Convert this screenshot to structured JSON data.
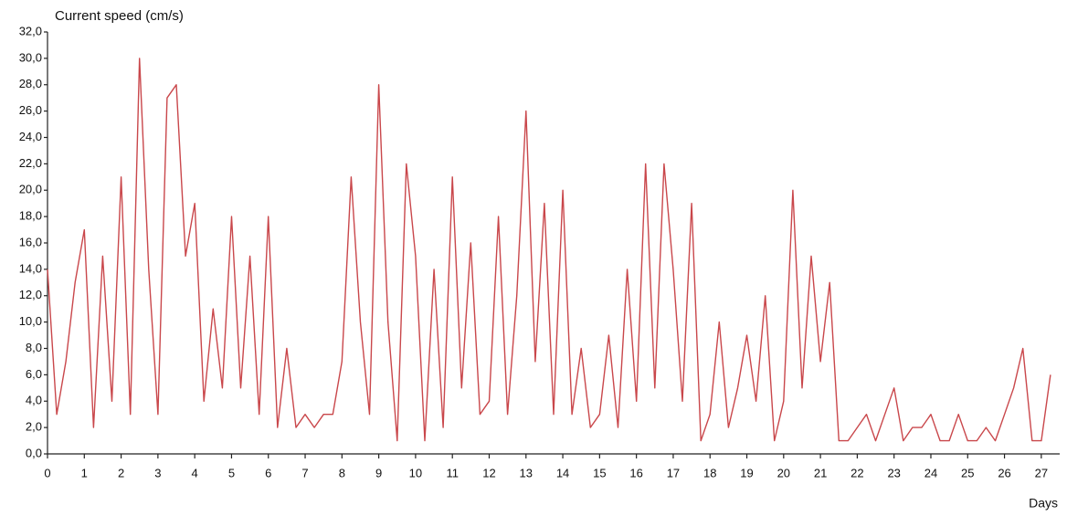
{
  "chart_data": {
    "type": "line",
    "title": "Current speed (cm/s)",
    "x_label": "Days",
    "color": "#c9474b",
    "xlim": [
      0,
      27.5
    ],
    "ylim": [
      0,
      32
    ],
    "xticks": [
      0,
      1,
      2,
      3,
      4,
      5,
      6,
      7,
      8,
      9,
      10,
      11,
      12,
      13,
      14,
      15,
      16,
      17,
      18,
      19,
      20,
      21,
      22,
      23,
      24,
      25,
      26,
      27
    ],
    "yticks": [
      {
        "value": 0,
        "label": "0,0"
      },
      {
        "value": 2,
        "label": "2,0"
      },
      {
        "value": 4,
        "label": "4,0"
      },
      {
        "value": 6,
        "label": "6,0"
      },
      {
        "value": 8,
        "label": "8,0"
      },
      {
        "value": 10,
        "label": "10,0"
      },
      {
        "value": 12,
        "label": "12,0"
      },
      {
        "value": 14,
        "label": "14,0"
      },
      {
        "value": 16,
        "label": "16,0"
      },
      {
        "value": 18,
        "label": "18,0"
      },
      {
        "value": 20,
        "label": "20,0"
      },
      {
        "value": 22,
        "label": "22,0"
      },
      {
        "value": 24,
        "label": "24,0"
      },
      {
        "value": 26,
        "label": "26,0"
      },
      {
        "value": 28,
        "label": "28,0"
      },
      {
        "value": 30,
        "label": "30,0"
      },
      {
        "value": 32,
        "label": "32,0"
      }
    ],
    "x": [
      0,
      0.25,
      0.5,
      0.75,
      1,
      1.25,
      1.5,
      1.75,
      2,
      2.25,
      2.5,
      2.75,
      3,
      3.25,
      3.5,
      3.75,
      4,
      4.25,
      4.5,
      4.75,
      5,
      5.25,
      5.5,
      5.75,
      6,
      6.25,
      6.5,
      6.75,
      7,
      7.25,
      7.5,
      7.75,
      8,
      8.25,
      8.5,
      8.75,
      9,
      9.25,
      9.5,
      9.75,
      10,
      10.25,
      10.5,
      10.75,
      11,
      11.25,
      11.5,
      11.75,
      12,
      12.25,
      12.5,
      12.75,
      13,
      13.25,
      13.5,
      13.75,
      14,
      14.25,
      14.5,
      14.75,
      15,
      15.25,
      15.5,
      15.75,
      16,
      16.25,
      16.5,
      16.75,
      17,
      17.25,
      17.5,
      17.75,
      18,
      18.25,
      18.5,
      18.75,
      19,
      19.25,
      19.5,
      19.75,
      20,
      20.25,
      20.5,
      20.75,
      21,
      21.25,
      21.5,
      21.75,
      22,
      22.25,
      22.5,
      22.75,
      23,
      23.25,
      23.5,
      23.75,
      24,
      24.25,
      24.5,
      24.75,
      25,
      25.25,
      25.5,
      25.75,
      26,
      26.25,
      26.5,
      26.75,
      27,
      27.25
    ],
    "values": [
      14,
      3,
      7,
      13,
      17,
      2,
      15,
      4,
      21,
      3,
      30,
      14,
      3,
      27,
      28,
      15,
      19,
      4,
      11,
      5,
      18,
      5,
      15,
      3,
      18,
      2,
      8,
      2,
      3,
      2,
      3,
      3,
      7,
      21,
      10,
      3,
      28,
      10,
      1,
      22,
      15,
      1,
      14,
      2,
      21,
      5,
      16,
      3,
      4,
      18,
      3,
      12,
      26,
      7,
      19,
      3,
      20,
      3,
      8,
      2,
      3,
      9,
      2,
      14,
      4,
      22,
      5,
      22,
      14,
      4,
      19,
      1,
      3,
      10,
      2,
      5,
      9,
      4,
      12,
      1,
      4,
      20,
      5,
      15,
      7,
      13,
      1,
      1,
      2,
      3,
      1,
      3,
      5,
      1,
      2,
      2,
      3,
      1,
      1,
      3,
      1,
      1,
      2,
      1,
      3,
      5,
      8,
      1,
      1,
      6
    ]
  }
}
